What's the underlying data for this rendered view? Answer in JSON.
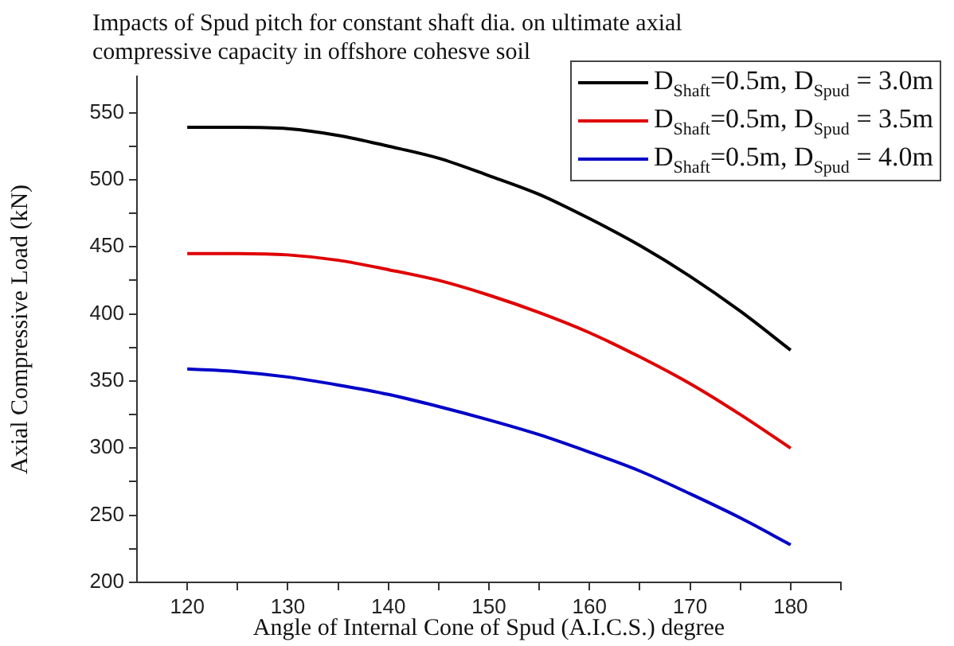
{
  "chart_data": {
    "type": "line",
    "title": "Impacts of Spud pitch for constant shaft dia. on ultimate axial compressive capacity in offshore cohesve soil",
    "xlabel": "Angle of Internal Cone of Spud (A.I.C.S.) degree",
    "ylabel": "Axial Compressive Load (kN)",
    "x": [
      120,
      125,
      130,
      135,
      140,
      145,
      150,
      155,
      160,
      165,
      170,
      175,
      180
    ],
    "series": [
      {
        "name": "D$_{Shaft}$=0.5m, D$_{Spud}$ = 3.0m",
        "color": "#000000",
        "values": [
          539,
          539,
          538,
          533,
          525,
          516,
          503,
          489,
          471,
          451,
          428,
          402,
          373
        ]
      },
      {
        "name": "D$_{Shaft}$=0.5m, D$_{Spud}$ = 3.5m",
        "color": "#e00000",
        "values": [
          445,
          445,
          444,
          440,
          433,
          425,
          414,
          401,
          386,
          368,
          348,
          325,
          300
        ]
      },
      {
        "name": "D$_{Shaft}$=0.5m, D$_{Spud}$ = 4.0m",
        "color": "#0000c8",
        "values": [
          359,
          357,
          353,
          347,
          340,
          331,
          321,
          310,
          297,
          283,
          266,
          248,
          228
        ]
      }
    ],
    "xlim": [
      115,
      185
    ],
    "ylim": [
      200,
      577
    ],
    "xticks": [
      120,
      {
        "value": 125,
        "label": null
      },
      130,
      {
        "value": 135,
        "label": null
      },
      140,
      {
        "value": 145,
        "label": null
      },
      150,
      {
        "value": 155,
        "label": null
      },
      160,
      {
        "value": 165,
        "label": null
      },
      170,
      {
        "value": 175,
        "label": null
      },
      180,
      {
        "value": 185,
        "label": null
      }
    ],
    "yticks": [
      200,
      {
        "value": 225,
        "label": null
      },
      250,
      {
        "value": 275,
        "label": null
      },
      300,
      {
        "value": 325,
        "label": null
      },
      350,
      {
        "value": 375,
        "label": null
      },
      400,
      {
        "value": 425,
        "label": null
      },
      450,
      {
        "value": 475,
        "label": null
      },
      500,
      {
        "value": 525,
        "label": null
      },
      550
    ],
    "grid": false,
    "legend": "top right",
    "marker": "none",
    "line_style": "solid"
  }
}
